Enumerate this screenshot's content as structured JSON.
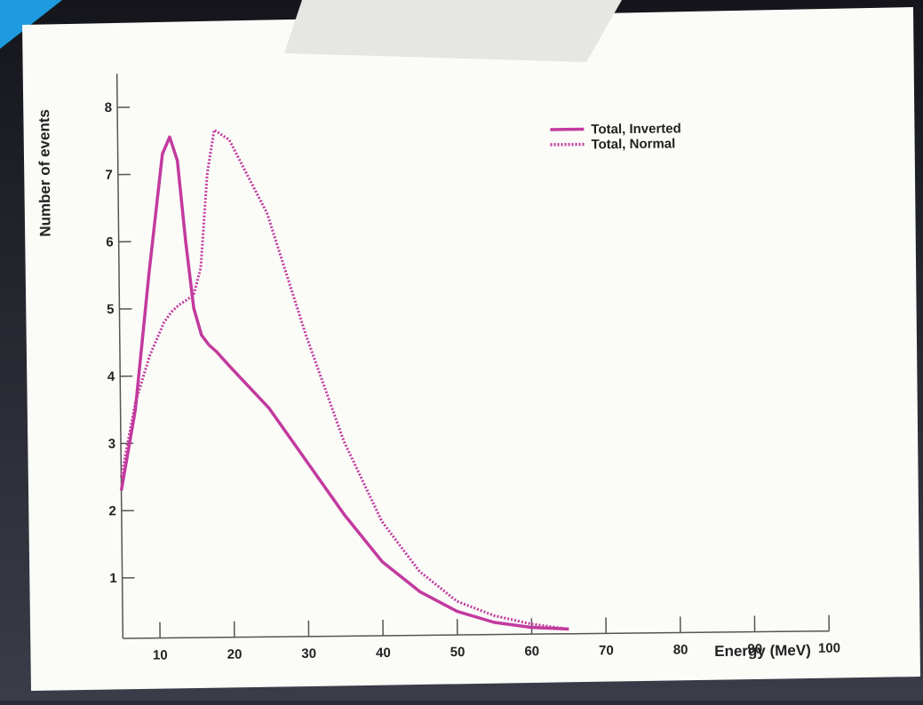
{
  "chart_data": {
    "type": "line",
    "x_label": "Energy (MeV)",
    "y_label": "Number of events",
    "x": [
      5,
      7,
      9,
      11,
      12,
      13,
      14,
      15,
      16,
      17,
      18,
      20,
      25,
      30,
      35,
      40,
      45,
      50,
      55,
      60,
      65
    ],
    "series": [
      {
        "name": "Total, Inverted",
        "color": "#c23a9e",
        "dash": false,
        "values": [
          2.3,
          3.5,
          5.5,
          7.3,
          7.55,
          7.2,
          6.0,
          5.0,
          4.6,
          4.45,
          4.35,
          4.1,
          3.5,
          2.7,
          1.9,
          1.2,
          0.75,
          0.45,
          0.28,
          0.2,
          0.17
        ]
      },
      {
        "name": "Total, Normal",
        "color": "#c23a9e",
        "dash": true,
        "values": [
          2.5,
          3.6,
          4.3,
          4.8,
          4.95,
          5.05,
          5.12,
          5.2,
          5.6,
          7.0,
          7.65,
          7.5,
          6.4,
          4.6,
          3.0,
          1.8,
          1.05,
          0.6,
          0.38,
          0.25,
          0.17
        ]
      }
    ],
    "xlim": [
      5,
      100
    ],
    "xticks": [
      10,
      20,
      30,
      40,
      50,
      60,
      70,
      80,
      90,
      100
    ],
    "ylim": [
      0.1,
      8.5
    ],
    "yticks": [
      1,
      2,
      3,
      4,
      5,
      6,
      7,
      8
    ]
  }
}
